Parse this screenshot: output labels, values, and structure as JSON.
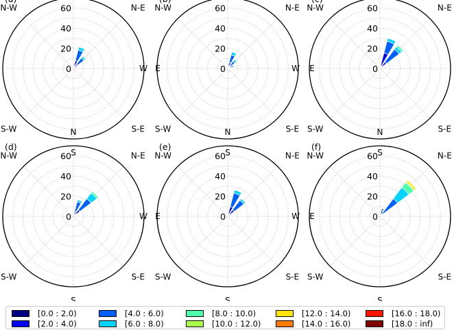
{
  "figure": {
    "panels": [
      {
        "label": "(a)"
      },
      {
        "label": "(b)"
      },
      {
        "label": "(c)"
      },
      {
        "label": "(d)"
      },
      {
        "label": "(e)"
      },
      {
        "label": "(f)"
      }
    ],
    "compass": [
      "N",
      "N-E",
      "E",
      "S-E",
      "S",
      "S-W",
      "W",
      "N-W"
    ],
    "radial_ticks": [
      "0",
      "20",
      "40",
      "60"
    ]
  },
  "legend": {
    "items": [
      {
        "label": "[0.0 : 2.0)",
        "color": "#000080"
      },
      {
        "label": "[2.0 : 4.0)",
        "color": "#0000f1"
      },
      {
        "label": "[4.0 : 6.0)",
        "color": "#0060ff"
      },
      {
        "label": "[6.0 : 8.0)",
        "color": "#00d4ff"
      },
      {
        "label": "[8.0 : 10.0)",
        "color": "#4dffaa"
      },
      {
        "label": "[10.0 : 12.0)",
        "color": "#aaff4d"
      },
      {
        "label": "[12.0 : 14.0)",
        "color": "#ffe600"
      },
      {
        "label": "[14.0 : 16.0)",
        "color": "#ff7a00"
      },
      {
        "label": "[16.0 : 18.0)",
        "color": "#ff1400"
      },
      {
        "label": "[18.0 : inf)",
        "color": "#800000"
      }
    ]
  },
  "chart_data": {
    "type": "windrose",
    "title": "",
    "radial_axis": {
      "ticks": [
        0,
        20,
        40,
        60
      ],
      "max": 70,
      "grid_circles_every": 10,
      "grid": "dotted"
    },
    "direction_labels": [
      "N",
      "N-E",
      "E",
      "S-E",
      "S",
      "S-W",
      "W",
      "N-W"
    ],
    "speed_bins": [
      "[0.0 : 2.0)",
      "[2.0 : 4.0)",
      "[4.0 : 6.0)",
      "[6.0 : 8.0)",
      "[8.0 : 10.0)",
      "[10.0 : 12.0)",
      "[12.0 : 14.0)",
      "[14.0 : 16.0)",
      "[16.0 : 18.0)",
      "[18.0 : inf)"
    ],
    "legend_position": "bottom",
    "panels": [
      {
        "label": "(a)",
        "petals": [
          {
            "direction_deg": 22.5,
            "cumulative": [
              2,
              8,
              19,
              22
            ]
          },
          {
            "direction_deg": 45,
            "cumulative": [
              2,
              5,
              13,
              15,
              16
            ]
          },
          {
            "direction_deg": 67.5,
            "cumulative": [
              1,
              3,
              4
            ]
          }
        ]
      },
      {
        "label": "(b)",
        "petals": [
          {
            "direction_deg": 22.5,
            "cumulative": [
              2,
              6,
              14,
              17
            ]
          },
          {
            "direction_deg": 45,
            "cumulative": [
              1,
              3,
              9,
              11,
              12
            ]
          },
          {
            "direction_deg": 67.5,
            "cumulative": [
              1,
              3,
              6
            ]
          },
          {
            "direction_deg": 157.5,
            "cumulative": [
              0,
              0,
              0,
              4
            ]
          }
        ]
      },
      {
        "label": "(c)",
        "petals": [
          {
            "direction_deg": 22.5,
            "cumulative": [
              3,
              16,
              28,
              31
            ]
          },
          {
            "direction_deg": 45,
            "cumulative": [
              2,
              8,
              24,
              27,
              29
            ]
          }
        ]
      },
      {
        "label": "(d)",
        "petals": [
          {
            "direction_deg": 22.5,
            "cumulative": [
              2,
              5,
              15,
              17
            ]
          },
          {
            "direction_deg": 45,
            "cumulative": [
              3,
              8,
              22,
              29,
              31
            ]
          }
        ]
      },
      {
        "label": "(e)",
        "petals": [
          {
            "direction_deg": 22.5,
            "cumulative": [
              2,
              10,
              24,
              27
            ]
          },
          {
            "direction_deg": 45,
            "cumulative": [
              2,
              8,
              20,
              22
            ]
          }
        ]
      },
      {
        "label": "(f)",
        "petals": [
          {
            "direction_deg": 22.5,
            "cumulative": [
              1,
              6,
              8
            ]
          },
          {
            "direction_deg": 45,
            "cumulative": [
              1,
              3,
              22,
              36,
              42,
              43,
              45
            ]
          }
        ]
      }
    ]
  }
}
